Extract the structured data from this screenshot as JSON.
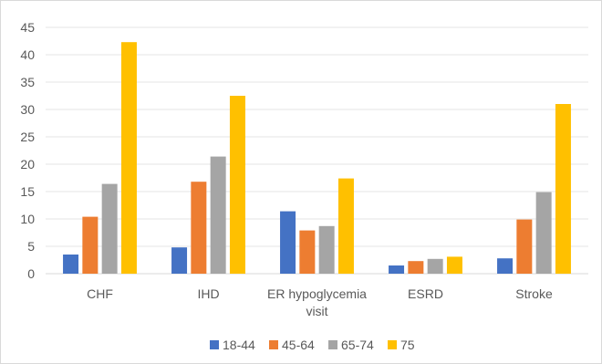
{
  "chart_data": {
    "type": "bar",
    "title": "",
    "xlabel": "",
    "ylabel": "",
    "ylim": [
      0,
      45
    ],
    "yticks": [
      0,
      5,
      10,
      15,
      20,
      25,
      30,
      35,
      40,
      45
    ],
    "grid": true,
    "legend_position": "bottom",
    "categories": [
      [
        "CHF"
      ],
      [
        "IHD"
      ],
      [
        "ER hypoglycemia",
        "visit"
      ],
      [
        "ESRD"
      ],
      [
        "Stroke"
      ]
    ],
    "series": [
      {
        "name": "18-44",
        "color": "#4472c4",
        "values": [
          3.5,
          4.8,
          11.4,
          1.5,
          2.8
        ]
      },
      {
        "name": "45-64",
        "color": "#ed7d31",
        "values": [
          10.4,
          16.8,
          7.9,
          2.3,
          9.9
        ]
      },
      {
        "name": "65-74",
        "color": "#a5a5a5",
        "values": [
          16.4,
          21.4,
          8.7,
          2.7,
          14.9
        ]
      },
      {
        "name": "75",
        "color": "#ffc000",
        "values": [
          42.3,
          32.5,
          17.4,
          3.1,
          31.0
        ]
      }
    ]
  }
}
